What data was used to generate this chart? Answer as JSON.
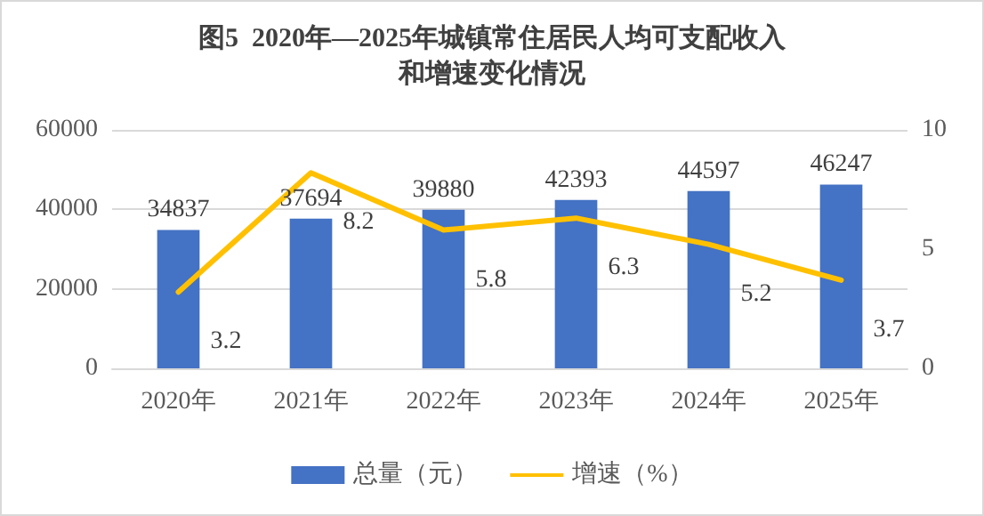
{
  "chart_data": {
    "type": "bar",
    "title": "图5  2020年—2025年城镇常住居民人均可支配收入和增速变化情况",
    "categories": [
      "2020年",
      "2021年",
      "2022年",
      "2023年",
      "2024年",
      "2025年"
    ],
    "series": [
      {
        "name": "总量（元）",
        "color": "#4472c4",
        "values": [
          34837,
          37694,
          39880,
          42393,
          44597,
          46247
        ]
      },
      {
        "name": "增速（%）",
        "type": "line",
        "axis": "y2",
        "color": "#ffc000",
        "values": [
          3.2,
          8.2,
          5.8,
          6.3,
          5.2,
          3.7
        ]
      }
    ],
    "ylim": [
      0,
      60000
    ],
    "yticks": [
      0,
      20000,
      40000,
      60000
    ],
    "y2lim": [
      0,
      10
    ],
    "y2ticks": [
      0,
      5,
      10
    ],
    "grid": "y",
    "legend": "bottom",
    "marker": "none",
    "data_labels": true
  }
}
